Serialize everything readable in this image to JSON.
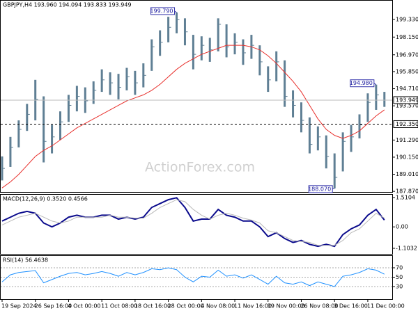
{
  "chart_data": [
    {
      "type": "ohlc",
      "title": "GBPJPY,H4 193.960 194.094 193.833 193.949",
      "watermark": "ActionForex.com",
      "bar_color": "#5f7f94",
      "categories": [
        "19 Sep 2024",
        null,
        null,
        null,
        "26 Sep 16:00",
        null,
        null,
        null,
        "4 Oct 00:00",
        null,
        null,
        null,
        "11 Oct 08:00",
        null,
        null,
        null,
        "18 Oct 16:00",
        null,
        null,
        null,
        "28 Oct 00:00",
        null,
        null,
        null,
        "4 Nov 08:00",
        null,
        null,
        null,
        "11 Nov 16:00",
        null,
        null,
        null,
        "19 Nov 00:00",
        null,
        null,
        null,
        "26 Nov 08:00",
        null,
        null,
        null,
        "3 Dec 16:00",
        null,
        null,
        null,
        "11 Dec 00:00",
        null,
        null
      ],
      "high": [
        190.2,
        191.5,
        192.6,
        193.7,
        195.3,
        194.2,
        192.3,
        193.2,
        194.3,
        194.9,
        194.8,
        195.2,
        196.0,
        195.8,
        195.7,
        196.1,
        195.9,
        196.4,
        198.0,
        198.6,
        199.5,
        199.79,
        199.4,
        198.3,
        198.2,
        198.1,
        199.4,
        199.0,
        198.4,
        198.0,
        198.3,
        197.6,
        196.2,
        197.2,
        196.6,
        194.6,
        193.8,
        192.8,
        192.2,
        191.6,
        190.4,
        191.8,
        192.3,
        193.0,
        194.4,
        194.98,
        194.5
      ],
      "low": [
        188.6,
        189.5,
        190.8,
        191.9,
        192.6,
        189.8,
        190.4,
        191.3,
        192.5,
        193.2,
        193.1,
        193.7,
        194.5,
        194.3,
        194.0,
        194.6,
        194.3,
        194.8,
        195.9,
        196.9,
        197.8,
        198.4,
        197.6,
        196.0,
        196.6,
        196.5,
        197.2,
        196.8,
        197.0,
        196.3,
        196.7,
        195.6,
        194.5,
        195.2,
        193.5,
        192.8,
        191.8,
        190.4,
        190.6,
        189.4,
        188.07,
        189.2,
        190.5,
        191.4,
        192.5,
        193.3,
        193.5
      ],
      "close": [
        189.4,
        190.8,
        192.0,
        193.0,
        194.0,
        191.2,
        191.5,
        192.5,
        193.6,
        194.2,
        193.9,
        194.6,
        195.3,
        195.1,
        194.8,
        195.5,
        195.1,
        195.6,
        197.5,
        197.8,
        198.8,
        199.3,
        198.5,
        197.0,
        197.6,
        197.3,
        199.0,
        197.5,
        197.8,
        197.1,
        197.6,
        196.5,
        195.3,
        196.5,
        194.2,
        193.6,
        192.6,
        191.0,
        191.5,
        190.2,
        188.8,
        191.2,
        191.5,
        192.3,
        193.8,
        194.3,
        193.949
      ],
      "moving_average": {
        "color": "#e8302c",
        "values": [
          188.1,
          188.5,
          189.0,
          189.6,
          190.2,
          190.6,
          190.9,
          191.3,
          191.7,
          192.1,
          192.4,
          192.7,
          193.0,
          193.3,
          193.6,
          193.9,
          194.1,
          194.3,
          194.6,
          195.0,
          195.5,
          196.0,
          196.4,
          196.7,
          197.0,
          197.2,
          197.4,
          197.6,
          197.6,
          197.6,
          197.5,
          197.3,
          196.9,
          196.4,
          195.8,
          195.2,
          194.5,
          193.6,
          192.7,
          192.0,
          191.6,
          191.4,
          191.6,
          191.9,
          192.4,
          192.9,
          193.3
        ]
      },
      "ylim": [
        187.83,
        200.62
      ],
      "yticks": [
        {
          "value": 199.33,
          "label": "199.330"
        },
        {
          "value": 198.15,
          "label": "198.150"
        },
        {
          "value": 196.97,
          "label": "196.970"
        },
        {
          "value": 195.85,
          "label": "195.850"
        },
        {
          "value": 194.71,
          "label": "194.710"
        },
        {
          "value": 193.57,
          "label": "193.570"
        },
        {
          "value": 191.29,
          "label": "191.290"
        },
        {
          "value": 190.15,
          "label": "190.150"
        },
        {
          "value": 189.01,
          "label": "189.010"
        },
        {
          "value": 187.87,
          "label": "187.870"
        }
      ],
      "annotations": [
        {
          "value": 199.79,
          "label": "199.790"
        },
        {
          "value": 194.98,
          "label": "194.980"
        },
        {
          "value": 188.07,
          "label": "188.070"
        }
      ],
      "level": {
        "value": 192.35,
        "label": "192.350"
      },
      "last_price": {
        "value": 193.949,
        "label": "193.949"
      }
    },
    {
      "type": "line",
      "title": "MACD(12,26,9) 0.3520 0.4566",
      "ylim": [
        -1.39,
        1.69
      ],
      "yticks": [
        1.5104,
        {
          "value": 0,
          "label": "0.00"
        },
        -1.1032
      ],
      "series": [
        {
          "color": "#0a0a8c",
          "width": 2,
          "values": [
            0.3,
            0.5,
            0.7,
            0.8,
            0.7,
            0.2,
            0.0,
            0.2,
            0.5,
            0.6,
            0.5,
            0.5,
            0.6,
            0.6,
            0.4,
            0.5,
            0.4,
            0.5,
            1.0,
            1.2,
            1.4,
            1.5,
            1.0,
            0.3,
            0.4,
            0.4,
            0.9,
            0.6,
            0.5,
            0.3,
            0.3,
            0.0,
            -0.5,
            -0.3,
            -0.6,
            -0.8,
            -0.7,
            -0.9,
            -1.0,
            -0.9,
            -1.0,
            -0.4,
            -0.1,
            0.1,
            0.6,
            0.9,
            0.352
          ]
        },
        {
          "color": "#b8b8b8",
          "width": 1,
          "values": [
            0.1,
            0.3,
            0.5,
            0.6,
            0.7,
            0.5,
            0.3,
            0.2,
            0.3,
            0.5,
            0.5,
            0.5,
            0.5,
            0.6,
            0.5,
            0.5,
            0.45,
            0.45,
            0.7,
            1.0,
            1.2,
            1.4,
            1.3,
            0.9,
            0.6,
            0.4,
            0.6,
            0.7,
            0.6,
            0.45,
            0.35,
            0.2,
            -0.2,
            -0.3,
            -0.5,
            -0.7,
            -0.75,
            -0.8,
            -0.95,
            -0.95,
            -0.95,
            -0.7,
            -0.3,
            -0.1,
            0.3,
            0.7,
            0.4566
          ]
        }
      ]
    },
    {
      "type": "line",
      "title": "RSI(14) 56.4638",
      "ylim": [
        3.3,
        96.7
      ],
      "yticks": [
        70,
        50,
        30
      ],
      "grid": true,
      "series": [
        {
          "color": "#1e90ff",
          "width": 1,
          "values": [
            40,
            55,
            60,
            62,
            64,
            38,
            45,
            52,
            58,
            60,
            55,
            58,
            62,
            58,
            52,
            60,
            55,
            60,
            68,
            66,
            70,
            66,
            50,
            40,
            52,
            50,
            65,
            52,
            55,
            48,
            55,
            45,
            35,
            52,
            38,
            35,
            40,
            32,
            40,
            35,
            30,
            52,
            55,
            60,
            68,
            65,
            56.4638
          ]
        }
      ]
    }
  ]
}
